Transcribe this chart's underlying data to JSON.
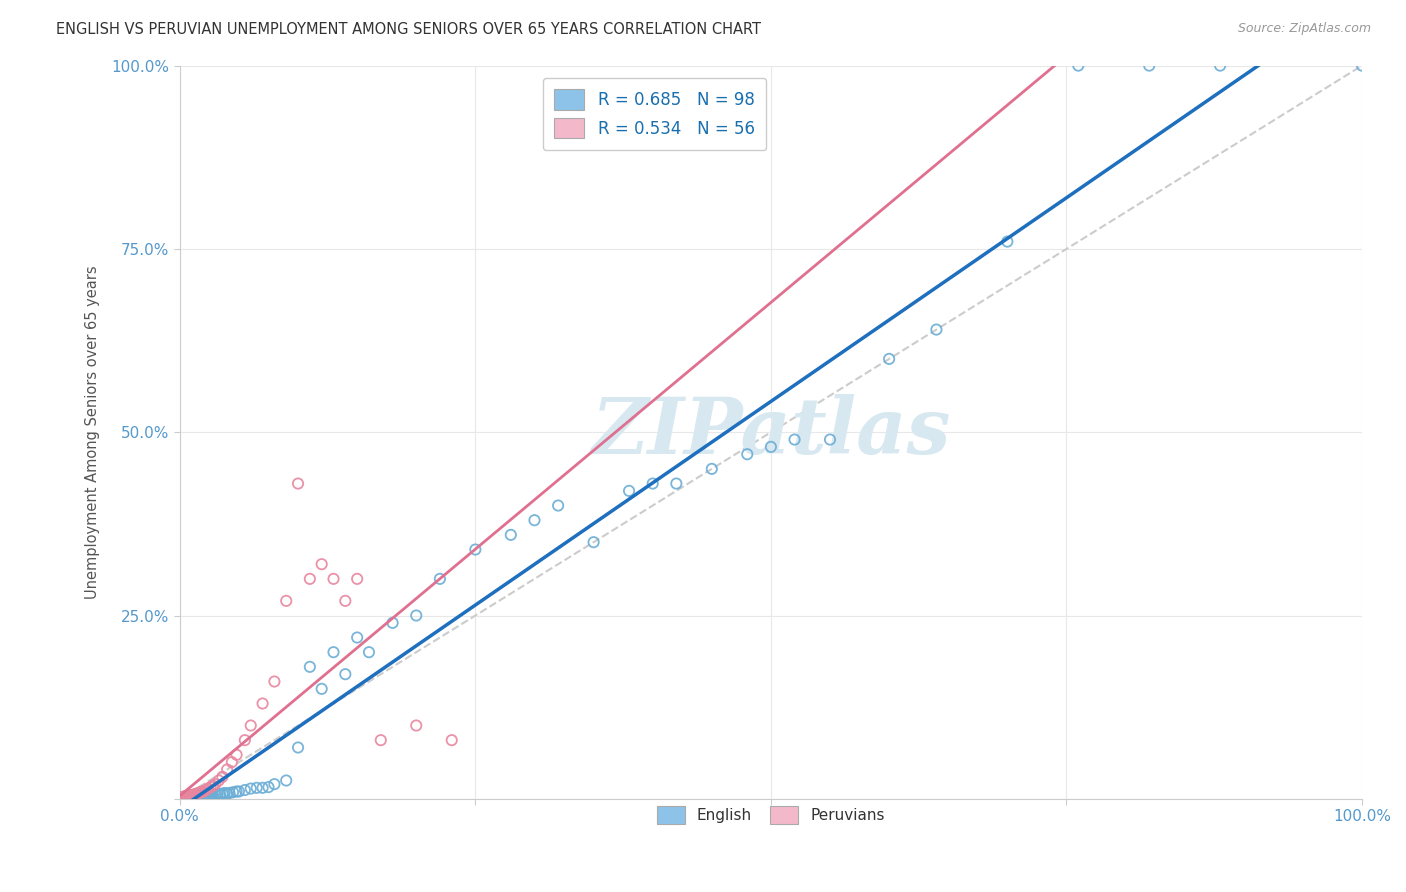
{
  "title": "ENGLISH VS PERUVIAN UNEMPLOYMENT AMONG SENIORS OVER 65 YEARS CORRELATION CHART",
  "source": "Source: ZipAtlas.com",
  "ylabel": "Unemployment Among Seniors over 65 years",
  "xlim": [
    0.0,
    1.0
  ],
  "ylim": [
    0.0,
    1.0
  ],
  "english_color": "#8dc3e8",
  "english_edge_color": "#6aadd5",
  "peruvian_color": "#f4b8cb",
  "peruvian_edge_color": "#e8869f",
  "english_line_color": "#1f6fbf",
  "peruvian_line_color": "#e07090",
  "diag_color": "#cccccc",
  "watermark": "ZIPatlas",
  "watermark_color": "#d8e8f0",
  "background_color": "#ffffff",
  "grid_color": "#e8e8e8",
  "tick_color_blue": "#5599cc",
  "tick_color_gray": "#888888",
  "legend_label_color": "#1a6faf",
  "legend_R_english": "R = 0.685",
  "legend_N_english": "N = 98",
  "legend_R_peruvian": "R = 0.534",
  "legend_N_peruvian": "N = 56",
  "english_scatter_x": [
    0.001,
    0.002,
    0.002,
    0.003,
    0.003,
    0.004,
    0.004,
    0.004,
    0.005,
    0.005,
    0.005,
    0.006,
    0.006,
    0.006,
    0.007,
    0.007,
    0.007,
    0.008,
    0.008,
    0.009,
    0.009,
    0.009,
    0.01,
    0.01,
    0.01,
    0.011,
    0.011,
    0.012,
    0.012,
    0.013,
    0.013,
    0.014,
    0.014,
    0.015,
    0.015,
    0.016,
    0.016,
    0.017,
    0.018,
    0.018,
    0.019,
    0.02,
    0.02,
    0.021,
    0.022,
    0.023,
    0.024,
    0.025,
    0.026,
    0.027,
    0.028,
    0.03,
    0.032,
    0.034,
    0.036,
    0.038,
    0.04,
    0.042,
    0.045,
    0.048,
    0.05,
    0.055,
    0.06,
    0.065,
    0.07,
    0.075,
    0.08,
    0.09,
    0.1,
    0.11,
    0.12,
    0.13,
    0.14,
    0.15,
    0.16,
    0.18,
    0.2,
    0.22,
    0.25,
    0.28,
    0.3,
    0.32,
    0.35,
    0.38,
    0.4,
    0.42,
    0.45,
    0.48,
    0.5,
    0.52,
    0.55,
    0.6,
    0.64,
    0.7,
    0.76,
    0.82,
    0.88,
    1.0
  ],
  "english_scatter_y": [
    0.001,
    0.002,
    0.001,
    0.002,
    0.001,
    0.002,
    0.001,
    0.003,
    0.002,
    0.001,
    0.003,
    0.002,
    0.001,
    0.003,
    0.002,
    0.001,
    0.003,
    0.002,
    0.003,
    0.002,
    0.001,
    0.003,
    0.002,
    0.003,
    0.001,
    0.003,
    0.002,
    0.003,
    0.004,
    0.003,
    0.002,
    0.003,
    0.004,
    0.003,
    0.004,
    0.003,
    0.004,
    0.003,
    0.004,
    0.005,
    0.004,
    0.003,
    0.005,
    0.004,
    0.005,
    0.004,
    0.005,
    0.004,
    0.005,
    0.006,
    0.005,
    0.006,
    0.007,
    0.006,
    0.007,
    0.008,
    0.007,
    0.008,
    0.009,
    0.01,
    0.01,
    0.012,
    0.014,
    0.015,
    0.015,
    0.016,
    0.02,
    0.025,
    0.07,
    0.18,
    0.15,
    0.2,
    0.17,
    0.22,
    0.2,
    0.24,
    0.25,
    0.3,
    0.34,
    0.36,
    0.38,
    0.4,
    0.35,
    0.42,
    0.43,
    0.43,
    0.45,
    0.47,
    0.48,
    0.49,
    0.49,
    0.6,
    0.64,
    0.76,
    1.0,
    1.0,
    1.0,
    1.0
  ],
  "peruvian_scatter_x": [
    0.001,
    0.001,
    0.002,
    0.002,
    0.003,
    0.003,
    0.004,
    0.004,
    0.005,
    0.005,
    0.005,
    0.006,
    0.006,
    0.007,
    0.007,
    0.008,
    0.008,
    0.009,
    0.009,
    0.01,
    0.01,
    0.011,
    0.012,
    0.012,
    0.013,
    0.014,
    0.015,
    0.016,
    0.017,
    0.018,
    0.019,
    0.02,
    0.022,
    0.024,
    0.026,
    0.028,
    0.03,
    0.033,
    0.036,
    0.04,
    0.044,
    0.048,
    0.055,
    0.06,
    0.07,
    0.08,
    0.09,
    0.1,
    0.11,
    0.12,
    0.13,
    0.14,
    0.15,
    0.17,
    0.2,
    0.23
  ],
  "peruvian_scatter_y": [
    0.001,
    0.002,
    0.002,
    0.001,
    0.002,
    0.003,
    0.002,
    0.003,
    0.002,
    0.003,
    0.001,
    0.003,
    0.004,
    0.003,
    0.004,
    0.003,
    0.004,
    0.004,
    0.005,
    0.004,
    0.005,
    0.005,
    0.006,
    0.005,
    0.006,
    0.007,
    0.007,
    0.008,
    0.009,
    0.009,
    0.01,
    0.01,
    0.012,
    0.014,
    0.016,
    0.018,
    0.02,
    0.025,
    0.03,
    0.04,
    0.05,
    0.06,
    0.08,
    0.1,
    0.13,
    0.16,
    0.27,
    0.43,
    0.3,
    0.32,
    0.3,
    0.27,
    0.3,
    0.08,
    0.1,
    0.08
  ]
}
